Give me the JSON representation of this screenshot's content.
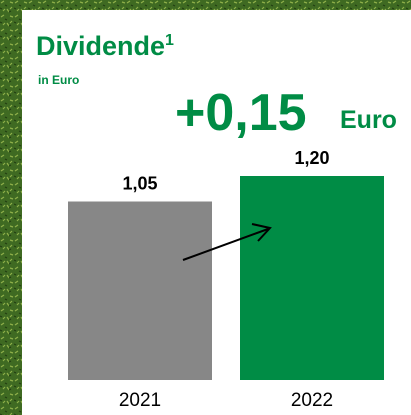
{
  "chart_data": {
    "type": "bar",
    "title": "Dividende",
    "title_footnote": "1",
    "subtitle": "in Euro",
    "annotation": "+0,15",
    "annotation_unit": "Euro",
    "categories": [
      "2021",
      "2022"
    ],
    "values": [
      1.05,
      1.2
    ],
    "value_labels": [
      "1,05",
      "1,20"
    ],
    "colors": [
      "#878787",
      "#008c45"
    ]
  }
}
